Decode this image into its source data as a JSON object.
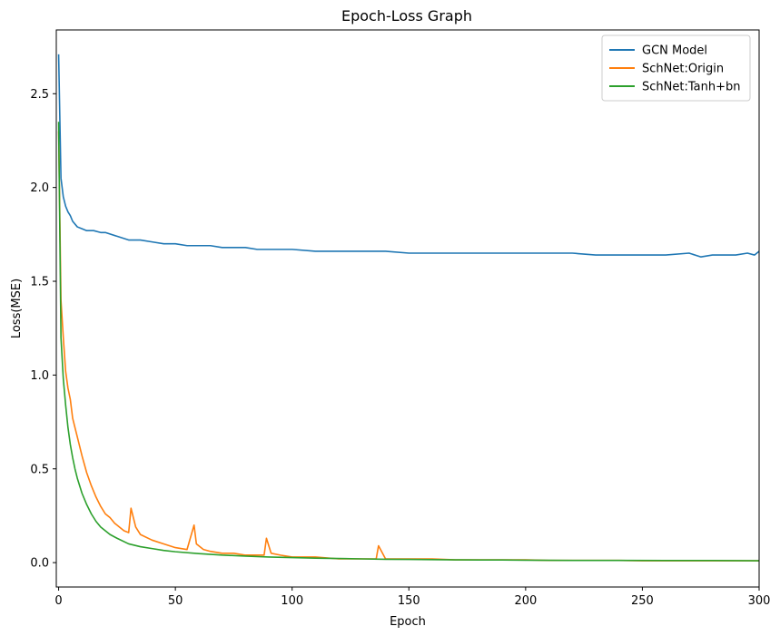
{
  "chart_data": {
    "type": "line",
    "title": "Epoch-Loss Graph",
    "xlabel": "Epoch",
    "ylabel": "Loss(MSE)",
    "xlim": [
      -1,
      300
    ],
    "ylim": [
      -0.13,
      2.84
    ],
    "xticks": [
      0,
      50,
      100,
      150,
      200,
      250,
      300
    ],
    "yticks": [
      0.0,
      0.5,
      1.0,
      1.5,
      2.0,
      2.5
    ],
    "xtick_labels": [
      "0",
      "50",
      "100",
      "150",
      "200",
      "250",
      "300"
    ],
    "ytick_labels": [
      "0.0",
      "0.5",
      "1.0",
      "1.5",
      "2.0",
      "2.5"
    ],
    "grid": false,
    "legend_position": "top-right",
    "series": [
      {
        "name": "GCN Model",
        "color": "#1f77b4",
        "x": [
          0,
          1,
          2,
          3,
          4,
          5,
          6,
          8,
          10,
          12,
          15,
          18,
          20,
          25,
          30,
          35,
          40,
          45,
          50,
          55,
          60,
          65,
          70,
          75,
          80,
          85,
          90,
          95,
          100,
          110,
          120,
          130,
          140,
          150,
          160,
          170,
          180,
          190,
          200,
          210,
          220,
          230,
          240,
          250,
          260,
          270,
          275,
          280,
          290,
          295,
          298,
          300
        ],
        "y": [
          2.71,
          2.05,
          1.95,
          1.9,
          1.87,
          1.85,
          1.82,
          1.79,
          1.78,
          1.77,
          1.77,
          1.76,
          1.76,
          1.74,
          1.72,
          1.72,
          1.71,
          1.7,
          1.7,
          1.69,
          1.69,
          1.69,
          1.68,
          1.68,
          1.68,
          1.67,
          1.67,
          1.67,
          1.67,
          1.66,
          1.66,
          1.66,
          1.66,
          1.65,
          1.65,
          1.65,
          1.65,
          1.65,
          1.65,
          1.65,
          1.65,
          1.64,
          1.64,
          1.64,
          1.64,
          1.65,
          1.63,
          1.64,
          1.64,
          1.65,
          1.64,
          1.66
        ]
      },
      {
        "name": "SchNet:Origin",
        "color": "#ff7f0e",
        "x": [
          0,
          1,
          2,
          3,
          4,
          5,
          6,
          7,
          8,
          10,
          12,
          14,
          16,
          18,
          20,
          22,
          24,
          26,
          28,
          30,
          31,
          33,
          35,
          40,
          45,
          50,
          55,
          58,
          59,
          62,
          65,
          70,
          75,
          80,
          88,
          89,
          91,
          95,
          100,
          110,
          120,
          130,
          136,
          137,
          140,
          150,
          160,
          170,
          180,
          190,
          200,
          210,
          220,
          230,
          240,
          250,
          260,
          270,
          280,
          290,
          300
        ],
        "y": [
          2.3,
          1.4,
          1.2,
          1.02,
          0.93,
          0.87,
          0.77,
          0.72,
          0.67,
          0.57,
          0.48,
          0.41,
          0.35,
          0.3,
          0.26,
          0.24,
          0.21,
          0.19,
          0.17,
          0.16,
          0.29,
          0.19,
          0.15,
          0.12,
          0.1,
          0.08,
          0.07,
          0.2,
          0.1,
          0.07,
          0.06,
          0.05,
          0.05,
          0.04,
          0.04,
          0.13,
          0.05,
          0.04,
          0.03,
          0.03,
          0.02,
          0.02,
          0.02,
          0.09,
          0.02,
          0.02,
          0.02,
          0.015,
          0.015,
          0.015,
          0.015,
          0.012,
          0.012,
          0.012,
          0.012,
          0.01,
          0.01,
          0.01,
          0.01,
          0.01,
          0.01
        ]
      },
      {
        "name": "SchNet:Tanh+bn",
        "color": "#2ca02c",
        "x": [
          0,
          1,
          2,
          3,
          4,
          5,
          6,
          7,
          8,
          10,
          12,
          14,
          16,
          18,
          20,
          22,
          25,
          30,
          35,
          40,
          45,
          50,
          60,
          70,
          80,
          90,
          100,
          110,
          120,
          130,
          140,
          150,
          160,
          170,
          180,
          190,
          200,
          220,
          240,
          260,
          280,
          300
        ],
        "y": [
          2.35,
          1.2,
          0.98,
          0.84,
          0.72,
          0.63,
          0.56,
          0.5,
          0.45,
          0.37,
          0.31,
          0.26,
          0.22,
          0.19,
          0.17,
          0.15,
          0.13,
          0.1,
          0.085,
          0.075,
          0.065,
          0.058,
          0.048,
          0.04,
          0.035,
          0.03,
          0.027,
          0.024,
          0.022,
          0.02,
          0.018,
          0.017,
          0.016,
          0.015,
          0.014,
          0.014,
          0.013,
          0.012,
          0.012,
          0.011,
          0.011,
          0.01
        ]
      }
    ]
  }
}
